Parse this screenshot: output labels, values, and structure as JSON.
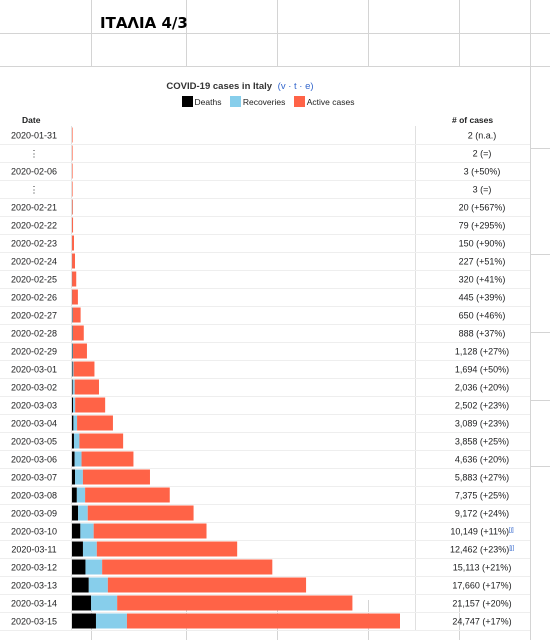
{
  "spreadsheet": {
    "title_cell": "ΙΤΑΛΙΑ 4/3"
  },
  "chart_data": {
    "type": "bar",
    "orientation": "horizontal",
    "stacked": true,
    "title": "COVID-19 cases in Italy",
    "title_links": "(v · t · e)",
    "date_header": "Date",
    "cases_header": "# of cases",
    "legend": {
      "placement": "top",
      "entries": [
        "Deaths",
        "Recoveries",
        "Active cases"
      ]
    },
    "colors": {
      "Deaths": "#000000",
      "Recoveries": "#87ceeb",
      "Active cases": "#ff6347"
    },
    "categories": [
      "2020-01-31",
      "⋮",
      "2020-02-06",
      "⋮",
      "2020-02-21",
      "2020-02-22",
      "2020-02-23",
      "2020-02-24",
      "2020-02-25",
      "2020-02-26",
      "2020-02-27",
      "2020-02-28",
      "2020-02-29",
      "2020-03-01",
      "2020-03-02",
      "2020-03-03",
      "2020-03-04",
      "2020-03-05",
      "2020-03-06",
      "2020-03-07",
      "2020-03-08",
      "2020-03-09",
      "2020-03-10",
      "2020-03-11",
      "2020-03-12",
      "2020-03-13",
      "2020-03-14",
      "2020-03-15"
    ],
    "series": [
      {
        "name": "Deaths",
        "values": [
          0,
          0,
          0,
          0,
          1,
          2,
          3,
          7,
          10,
          12,
          17,
          21,
          29,
          34,
          52,
          79,
          107,
          148,
          197,
          233,
          366,
          463,
          631,
          827,
          1016,
          1266,
          1441,
          1809
        ]
      },
      {
        "name": "Recoveries",
        "values": [
          0,
          0,
          0,
          0,
          0,
          1,
          1,
          1,
          1,
          3,
          45,
          46,
          50,
          83,
          149,
          160,
          276,
          414,
          523,
          589,
          622,
          724,
          1004,
          1045,
          1258,
          1439,
          1966,
          2335
        ]
      },
      {
        "name": "Active cases",
        "values": [
          2,
          2,
          3,
          3,
          19,
          76,
          146,
          219,
          309,
          430,
          588,
          821,
          1049,
          1577,
          1835,
          2263,
          2706,
          3296,
          3916,
          5061,
          6387,
          7985,
          8514,
          10590,
          12839,
          14955,
          17750,
          20603
        ]
      }
    ],
    "total_cases": [
      2,
      2,
      3,
      3,
      20,
      79,
      150,
      227,
      320,
      445,
      650,
      888,
      1128,
      1694,
      2036,
      2502,
      3089,
      3858,
      4636,
      5883,
      7375,
      9172,
      10149,
      12462,
      15113,
      17660,
      21157,
      24747
    ],
    "case_labels": [
      "2 (n.a.)",
      "2 (=)",
      "3 (+50%)",
      "3 (=)",
      "20 (+567%)",
      "79 (+295%)",
      "150 (+90%)",
      "227 (+51%)",
      "320 (+41%)",
      "445 (+39%)",
      "650 (+46%)",
      "888 (+37%)",
      "1,128 (+27%)",
      "1,694 (+50%)",
      "2,036 (+20%)",
      "2,502 (+23%)",
      "3,089 (+23%)",
      "3,858 (+25%)",
      "4,636 (+20%)",
      "5,883 (+27%)",
      "7,375 (+25%)",
      "9,172 (+24%)",
      "10,149 (+11%)",
      "12,462 (+23%)",
      "15,113 (+21%)",
      "17,660 (+17%)",
      "21,157 (+20%)",
      "24,747 (+17%)"
    ],
    "footnote_marks": [
      "",
      "",
      "",
      "",
      "",
      "",
      "",
      "",
      "",
      "",
      "",
      "",
      "",
      "",
      "",
      "",
      "",
      "",
      "",
      "",
      "",
      "",
      "[j]",
      "[j]",
      "",
      "",
      "",
      ""
    ],
    "xlim": [
      0,
      24747
    ]
  }
}
